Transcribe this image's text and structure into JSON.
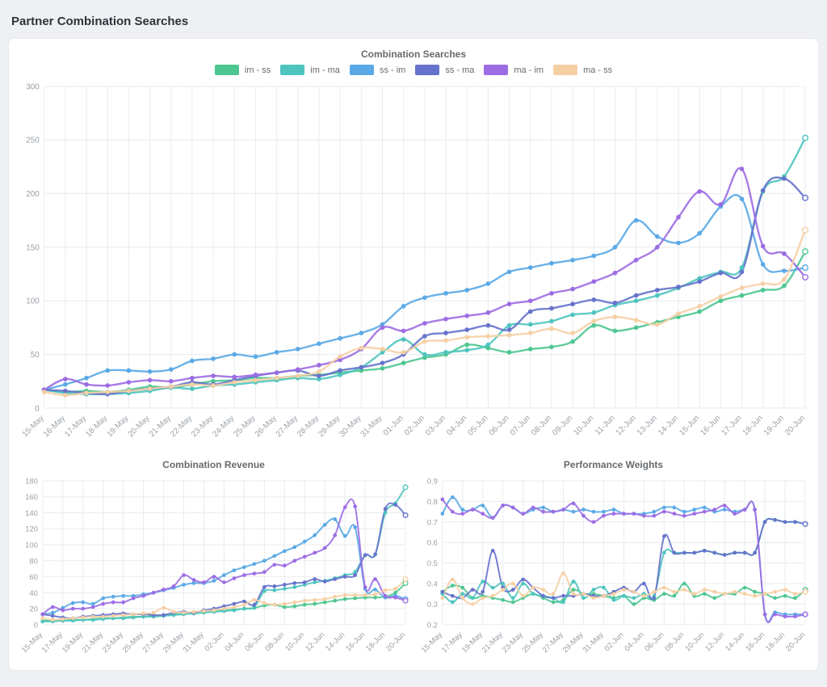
{
  "page": {
    "title": "Partner Combination Searches"
  },
  "colors": {
    "im_ss": "#4dc690",
    "im_ma": "#4ec4bf",
    "ss_im": "#5aa9e6",
    "ss_ma": "#6672cb",
    "ma_im": "#9c6ce3",
    "ma_ss": "#f5cfa4",
    "grid": "#e9ebee",
    "tick_text": "#9aa0a6"
  },
  "legend": [
    {
      "label": "im - ss",
      "color": "#4dc690"
    },
    {
      "label": "im - ma",
      "color": "#4ec4bf"
    },
    {
      "label": "ss - im",
      "color": "#5aa9e6"
    },
    {
      "label": "ss - ma",
      "color": "#6672cb"
    },
    {
      "label": "ma - im",
      "color": "#9c6ce3"
    },
    {
      "label": "ma - ss",
      "color": "#f5cfa4"
    }
  ],
  "chart_data": [
    {
      "type": "line",
      "title": "Combination Searches",
      "legend_position": "top",
      "grid": true,
      "x": [
        "15-May",
        "16-May",
        "17-May",
        "18-May",
        "19-May",
        "20-May",
        "21-May",
        "22-May",
        "23-May",
        "24-May",
        "25-May",
        "26-May",
        "27-May",
        "28-May",
        "29-May",
        "30-May",
        "31-May",
        "01-Jun",
        "02-Jun",
        "03-Jun",
        "04-Jun",
        "05-Jun",
        "06-Jun",
        "07-Jun",
        "08-Jun",
        "09-Jun",
        "10-Jun",
        "11-Jun",
        "12-Jun",
        "13-Jun",
        "14-Jun",
        "15-Jun",
        "16-Jun",
        "17-Jun",
        "18-Jun",
        "19-Jun",
        "20-Jun"
      ],
      "x_tick_every": 1,
      "ylim": [
        0,
        300
      ],
      "yticks": [
        0,
        50,
        100,
        150,
        200,
        250,
        300
      ],
      "y_decimals": 0,
      "series": [
        {
          "name": "im - ss",
          "color": "#4dc690",
          "values": [
            17,
            15,
            16,
            15,
            17,
            20,
            19,
            22,
            25,
            26,
            28,
            28,
            30,
            31,
            33,
            35,
            37,
            42,
            47,
            50,
            59,
            56,
            52,
            55,
            57,
            62,
            77,
            72,
            75,
            80,
            85,
            90,
            100,
            105,
            110,
            114,
            146
          ]
        },
        {
          "name": "im - ma",
          "color": "#4ec4bf",
          "values": [
            17,
            14,
            13,
            13,
            14,
            16,
            19,
            18,
            21,
            22,
            24,
            26,
            28,
            27,
            31,
            38,
            52,
            64,
            50,
            52,
            54,
            59,
            77,
            78,
            81,
            87,
            89,
            96,
            100,
            105,
            112,
            121,
            127,
            131,
            202,
            216,
            252
          ]
        },
        {
          "name": "ss - im",
          "color": "#5aa9e6",
          "values": [
            17,
            22,
            28,
            35,
            35,
            34,
            36,
            44,
            46,
            50,
            48,
            52,
            55,
            60,
            65,
            70,
            78,
            95,
            103,
            107,
            110,
            116,
            127,
            131,
            135,
            138,
            142,
            150,
            175,
            160,
            154,
            163,
            188,
            195,
            134,
            128,
            131
          ]
        },
        {
          "name": "ss - ma",
          "color": "#6672cb",
          "values": [
            17,
            16,
            14,
            13,
            16,
            18,
            20,
            24,
            22,
            26,
            30,
            33,
            35,
            30,
            35,
            38,
            42,
            50,
            67,
            70,
            73,
            77,
            73,
            90,
            93,
            97,
            101,
            98,
            105,
            110,
            113,
            118,
            126,
            127,
            203,
            214,
            196
          ]
        },
        {
          "name": "ma - im",
          "color": "#9c6ce3",
          "values": [
            17,
            27,
            22,
            21,
            24,
            26,
            25,
            28,
            30,
            29,
            31,
            33,
            36,
            40,
            45,
            55,
            75,
            72,
            79,
            83,
            86,
            89,
            97,
            100,
            107,
            111,
            118,
            126,
            138,
            150,
            178,
            202,
            190,
            223,
            151,
            144,
            122
          ]
        },
        {
          "name": "ma - ss",
          "color": "#f5cfa4",
          "values": [
            15,
            12,
            14,
            15,
            16,
            18,
            20,
            22,
            21,
            24,
            26,
            28,
            30,
            34,
            48,
            56,
            55,
            52,
            62,
            63,
            66,
            67,
            68,
            70,
            74,
            70,
            81,
            85,
            82,
            78,
            88,
            95,
            104,
            112,
            116,
            120,
            166
          ]
        }
      ]
    },
    {
      "type": "line",
      "title": "Combination Revenue",
      "legend_position": "none",
      "grid": true,
      "x": [
        "15-May",
        "16-May",
        "17-May",
        "18-May",
        "19-May",
        "20-May",
        "21-May",
        "22-May",
        "23-May",
        "24-May",
        "25-May",
        "26-May",
        "27-May",
        "28-May",
        "29-May",
        "30-May",
        "31-May",
        "01-Jun",
        "02-Jun",
        "03-Jun",
        "04-Jun",
        "05-Jun",
        "06-Jun",
        "07-Jun",
        "08-Jun",
        "09-Jun",
        "10-Jun",
        "11-Jun",
        "12-Jun",
        "13-Jun",
        "14-Jun",
        "15-Jun",
        "16-Jun",
        "17-Jun",
        "18-Jun",
        "19-Jun",
        "20-Jun"
      ],
      "x_tick_every": 2,
      "ylim": [
        0,
        180
      ],
      "yticks": [
        0,
        20,
        40,
        60,
        80,
        100,
        120,
        140,
        160,
        180
      ],
      "y_decimals": 0,
      "series": [
        {
          "name": "im - ss",
          "color": "#4dc690",
          "values": [
            5,
            5,
            5,
            6,
            6,
            7,
            8,
            8,
            9,
            10,
            10,
            11,
            12,
            13,
            14,
            15,
            16,
            17,
            18,
            19,
            20,
            21,
            24,
            25,
            22,
            23,
            25,
            26,
            28,
            30,
            32,
            33,
            34,
            34,
            35,
            40,
            52
          ]
        },
        {
          "name": "im - ma",
          "color": "#4ec4bf",
          "values": [
            4,
            4,
            5,
            5,
            6,
            6,
            7,
            8,
            8,
            9,
            10,
            10,
            11,
            12,
            13,
            14,
            15,
            16,
            17,
            18,
            20,
            22,
            42,
            43,
            45,
            47,
            50,
            53,
            55,
            58,
            62,
            66,
            87,
            88,
            140,
            152,
            172
          ]
        },
        {
          "name": "ss - im",
          "color": "#5aa9e6",
          "values": [
            13,
            15,
            21,
            27,
            28,
            26,
            33,
            35,
            36,
            36,
            38,
            40,
            43,
            46,
            50,
            52,
            52,
            55,
            62,
            68,
            72,
            76,
            80,
            86,
            92,
            97,
            104,
            112,
            125,
            132,
            111,
            122,
            45,
            44,
            34,
            36,
            32
          ]
        },
        {
          "name": "ss - ma",
          "color": "#6672cb",
          "values": [
            13,
            11,
            9,
            8,
            10,
            11,
            12,
            13,
            14,
            13,
            13,
            12,
            12,
            15,
            16,
            15,
            18,
            20,
            23,
            26,
            29,
            25,
            47,
            48,
            50,
            52,
            53,
            57,
            54,
            57,
            60,
            62,
            87,
            88,
            145,
            150,
            137
          ]
        },
        {
          "name": "ma - im",
          "color": "#9c6ce3",
          "values": [
            13,
            22,
            18,
            20,
            20,
            22,
            26,
            28,
            28,
            33,
            36,
            40,
            44,
            48,
            62,
            56,
            53,
            60,
            53,
            58,
            62,
            64,
            66,
            75,
            74,
            80,
            85,
            90,
            96,
            112,
            147,
            148,
            47,
            57,
            36,
            34,
            30
          ]
        },
        {
          "name": "ma - ss",
          "color": "#f5cfa4",
          "values": [
            8,
            6,
            7,
            8,
            9,
            10,
            10,
            11,
            12,
            13,
            14,
            15,
            21,
            16,
            15,
            16,
            17,
            18,
            20,
            22,
            25,
            31,
            27,
            25,
            26,
            28,
            30,
            31,
            32,
            35,
            37,
            37,
            37,
            38,
            43,
            45,
            57
          ]
        }
      ]
    },
    {
      "type": "line",
      "title": "Performance Weights",
      "legend_position": "none",
      "grid": true,
      "x": [
        "15-May",
        "16-May",
        "17-May",
        "18-May",
        "19-May",
        "20-May",
        "21-May",
        "22-May",
        "23-May",
        "24-May",
        "25-May",
        "26-May",
        "27-May",
        "28-May",
        "29-May",
        "30-May",
        "31-May",
        "01-Jun",
        "02-Jun",
        "03-Jun",
        "04-Jun",
        "05-Jun",
        "06-Jun",
        "07-Jun",
        "08-Jun",
        "09-Jun",
        "10-Jun",
        "11-Jun",
        "12-Jun",
        "13-Jun",
        "14-Jun",
        "15-Jun",
        "16-Jun",
        "17-Jun",
        "18-Jun",
        "19-Jun",
        "20-Jun"
      ],
      "x_tick_every": 2,
      "ylim": [
        0.2,
        0.9
      ],
      "yticks": [
        0.2,
        0.3,
        0.4,
        0.5,
        0.6,
        0.7,
        0.8,
        0.9
      ],
      "y_decimals": 1,
      "series": [
        {
          "name": "im - ss",
          "color": "#4dc690",
          "values": [
            0.36,
            0.39,
            0.38,
            0.33,
            0.34,
            0.33,
            0.32,
            0.31,
            0.33,
            0.35,
            0.33,
            0.31,
            0.32,
            0.37,
            0.35,
            0.35,
            0.34,
            0.33,
            0.34,
            0.3,
            0.33,
            0.32,
            0.35,
            0.34,
            0.4,
            0.34,
            0.35,
            0.33,
            0.35,
            0.35,
            0.38,
            0.36,
            0.35,
            0.33,
            0.34,
            0.33,
            0.37
          ]
        },
        {
          "name": "im - ma",
          "color": "#4ec4bf",
          "values": [
            0.35,
            0.31,
            0.35,
            0.33,
            0.41,
            0.38,
            0.4,
            0.33,
            0.4,
            0.35,
            0.34,
            0.33,
            0.31,
            0.41,
            0.33,
            0.37,
            0.38,
            0.32,
            0.34,
            0.33,
            0.35,
            0.34,
            0.55,
            0.55,
            0.55,
            0.55,
            0.56,
            0.55,
            0.54,
            0.55,
            0.55,
            0.55,
            0.7,
            0.71,
            0.7,
            0.7,
            0.69
          ]
        },
        {
          "name": "ss - im",
          "color": "#5aa9e6",
          "values": [
            0.74,
            0.82,
            0.76,
            0.76,
            0.78,
            0.72,
            0.78,
            0.77,
            0.74,
            0.76,
            0.77,
            0.75,
            0.76,
            0.75,
            0.76,
            0.75,
            0.75,
            0.76,
            0.74,
            0.74,
            0.74,
            0.75,
            0.77,
            0.77,
            0.75,
            0.76,
            0.77,
            0.75,
            0.76,
            0.75,
            0.76,
            0.76,
            0.25,
            0.26,
            0.25,
            0.25,
            0.25
          ]
        },
        {
          "name": "ss - ma",
          "color": "#6672cb",
          "values": [
            0.36,
            0.34,
            0.33,
            0.37,
            0.36,
            0.56,
            0.38,
            0.37,
            0.42,
            0.38,
            0.34,
            0.33,
            0.34,
            0.34,
            0.35,
            0.34,
            0.34,
            0.36,
            0.38,
            0.36,
            0.4,
            0.33,
            0.63,
            0.55,
            0.55,
            0.55,
            0.56,
            0.55,
            0.54,
            0.55,
            0.55,
            0.55,
            0.7,
            0.71,
            0.7,
            0.7,
            0.69
          ]
        },
        {
          "name": "ma - im",
          "color": "#9c6ce3",
          "values": [
            0.81,
            0.75,
            0.74,
            0.76,
            0.74,
            0.72,
            0.78,
            0.77,
            0.74,
            0.77,
            0.75,
            0.75,
            0.76,
            0.79,
            0.73,
            0.7,
            0.73,
            0.74,
            0.74,
            0.74,
            0.73,
            0.73,
            0.75,
            0.74,
            0.73,
            0.74,
            0.75,
            0.76,
            0.78,
            0.74,
            0.76,
            0.76,
            0.25,
            0.25,
            0.24,
            0.24,
            0.25
          ]
        },
        {
          "name": "ma - ss",
          "color": "#f5cfa4",
          "values": [
            0.33,
            0.42,
            0.33,
            0.3,
            0.33,
            0.34,
            0.37,
            0.4,
            0.34,
            0.38,
            0.37,
            0.35,
            0.45,
            0.35,
            0.35,
            0.33,
            0.34,
            0.35,
            0.37,
            0.36,
            0.34,
            0.36,
            0.38,
            0.36,
            0.37,
            0.35,
            0.37,
            0.36,
            0.35,
            0.36,
            0.35,
            0.34,
            0.35,
            0.36,
            0.37,
            0.35,
            0.36
          ]
        }
      ]
    }
  ]
}
